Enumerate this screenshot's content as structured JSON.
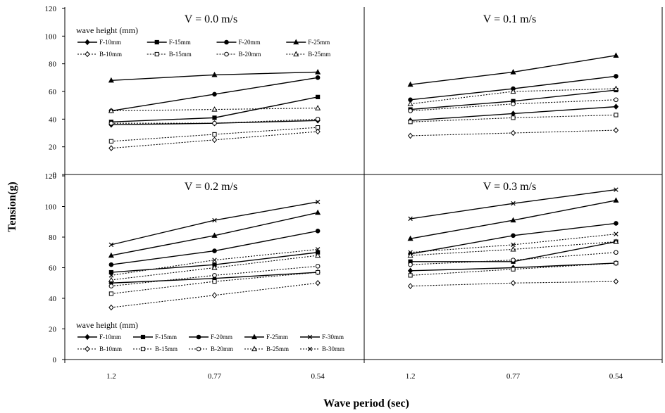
{
  "chart_data": {
    "type": "line",
    "xlabel": "Wave period (sec)",
    "ylabel": "Tension(g)",
    "categories": [
      "1.2",
      "0.77",
      "0.54"
    ],
    "ylim": [
      0,
      120
    ],
    "yticks": [
      0,
      20,
      40,
      60,
      80,
      100,
      120
    ],
    "legend_title": "wave height (mm)",
    "panels": [
      {
        "title": "V = 0.0 m/s",
        "legend": "top-left",
        "series": [
          {
            "name": "F-10mm",
            "style": "solid",
            "marker": "diamond",
            "values": [
              36,
              37,
              39
            ]
          },
          {
            "name": "F-15mm",
            "style": "solid",
            "marker": "square",
            "values": [
              38,
              41,
              56
            ]
          },
          {
            "name": "F-20mm",
            "style": "solid",
            "marker": "circle",
            "values": [
              46,
              58,
              70
            ]
          },
          {
            "name": "F-25mm",
            "style": "solid",
            "marker": "triangle",
            "values": [
              68,
              72,
              74
            ]
          },
          {
            "name": "B-10mm",
            "style": "dotted",
            "marker": "diamond",
            "values": [
              19,
              25,
              31
            ]
          },
          {
            "name": "B-15mm",
            "style": "dotted",
            "marker": "square",
            "values": [
              24,
              29,
              34
            ]
          },
          {
            "name": "B-20mm",
            "style": "dotted",
            "marker": "circle",
            "values": [
              37,
              37,
              40
            ]
          },
          {
            "name": "B-25mm",
            "style": "dotted",
            "marker": "triangle",
            "values": [
              46,
              47,
              48
            ]
          }
        ]
      },
      {
        "title": "V = 0.1 m/s",
        "legend": "none",
        "series": [
          {
            "name": "F-10mm",
            "style": "solid",
            "marker": "diamond",
            "values": [
              39,
              44,
              49
            ]
          },
          {
            "name": "F-15mm",
            "style": "solid",
            "marker": "square",
            "values": [
              47,
              53,
              61
            ]
          },
          {
            "name": "F-20mm",
            "style": "solid",
            "marker": "circle",
            "values": [
              54,
              62,
              71
            ]
          },
          {
            "name": "F-25mm",
            "style": "solid",
            "marker": "triangle",
            "values": [
              65,
              74,
              86
            ]
          },
          {
            "name": "B-10mm",
            "style": "dotted",
            "marker": "diamond",
            "values": [
              28,
              30,
              32
            ]
          },
          {
            "name": "B-15mm",
            "style": "dotted",
            "marker": "square",
            "values": [
              38,
              41,
              43
            ]
          },
          {
            "name": "B-20mm",
            "style": "dotted",
            "marker": "circle",
            "values": [
              46,
              51,
              54
            ]
          },
          {
            "name": "B-25mm",
            "style": "dotted",
            "marker": "triangle",
            "values": [
              51,
              60,
              62
            ]
          }
        ]
      },
      {
        "title": "V = 0.2 m/s",
        "legend": "bottom-left",
        "series": [
          {
            "name": "F-10mm",
            "style": "solid",
            "marker": "diamond",
            "values": [
              50,
              53,
              57
            ]
          },
          {
            "name": "F-15mm",
            "style": "solid",
            "marker": "square",
            "values": [
              57,
              62,
              70
            ]
          },
          {
            "name": "F-20mm",
            "style": "solid",
            "marker": "circle",
            "values": [
              62,
              71,
              84
            ]
          },
          {
            "name": "F-25mm",
            "style": "solid",
            "marker": "triangle",
            "values": [
              68,
              81,
              96
            ]
          },
          {
            "name": "F-30mm",
            "style": "solid",
            "marker": "x",
            "values": [
              75,
              91,
              103
            ]
          },
          {
            "name": "B-10mm",
            "style": "dotted",
            "marker": "diamond",
            "values": [
              34,
              42,
              50
            ]
          },
          {
            "name": "B-15mm",
            "style": "dotted",
            "marker": "square",
            "values": [
              43,
              51,
              57
            ]
          },
          {
            "name": "B-20mm",
            "style": "dotted",
            "marker": "circle",
            "values": [
              48,
              55,
              61
            ]
          },
          {
            "name": "B-25mm",
            "style": "dotted",
            "marker": "triangle",
            "values": [
              52,
              60,
              68
            ]
          },
          {
            "name": "B-30mm",
            "style": "dotted",
            "marker": "x",
            "values": [
              55,
              65,
              72
            ]
          }
        ]
      },
      {
        "title": "V = 0.3 m/s",
        "legend": "none",
        "series": [
          {
            "name": "F-10mm",
            "style": "solid",
            "marker": "diamond",
            "values": [
              58,
              60,
              63
            ]
          },
          {
            "name": "F-15mm",
            "style": "solid",
            "marker": "square",
            "values": [
              64,
              64,
              77
            ]
          },
          {
            "name": "F-20mm",
            "style": "solid",
            "marker": "circle",
            "values": [
              69,
              81,
              89
            ]
          },
          {
            "name": "F-25mm",
            "style": "solid",
            "marker": "triangle",
            "values": [
              79,
              91,
              104
            ]
          },
          {
            "name": "F-30mm",
            "style": "solid",
            "marker": "x",
            "values": [
              92,
              102,
              111
            ]
          },
          {
            "name": "B-10mm",
            "style": "dotted",
            "marker": "diamond",
            "values": [
              48,
              50,
              51
            ]
          },
          {
            "name": "B-15mm",
            "style": "dotted",
            "marker": "square",
            "values": [
              55,
              59,
              63
            ]
          },
          {
            "name": "B-20mm",
            "style": "dotted",
            "marker": "circle",
            "values": [
              62,
              65,
              70
            ]
          },
          {
            "name": "B-25mm",
            "style": "dotted",
            "marker": "triangle",
            "values": [
              68,
              72,
              77
            ]
          },
          {
            "name": "B-30mm",
            "style": "dotted",
            "marker": "x",
            "values": [
              70,
              75,
              82
            ]
          }
        ]
      }
    ]
  }
}
